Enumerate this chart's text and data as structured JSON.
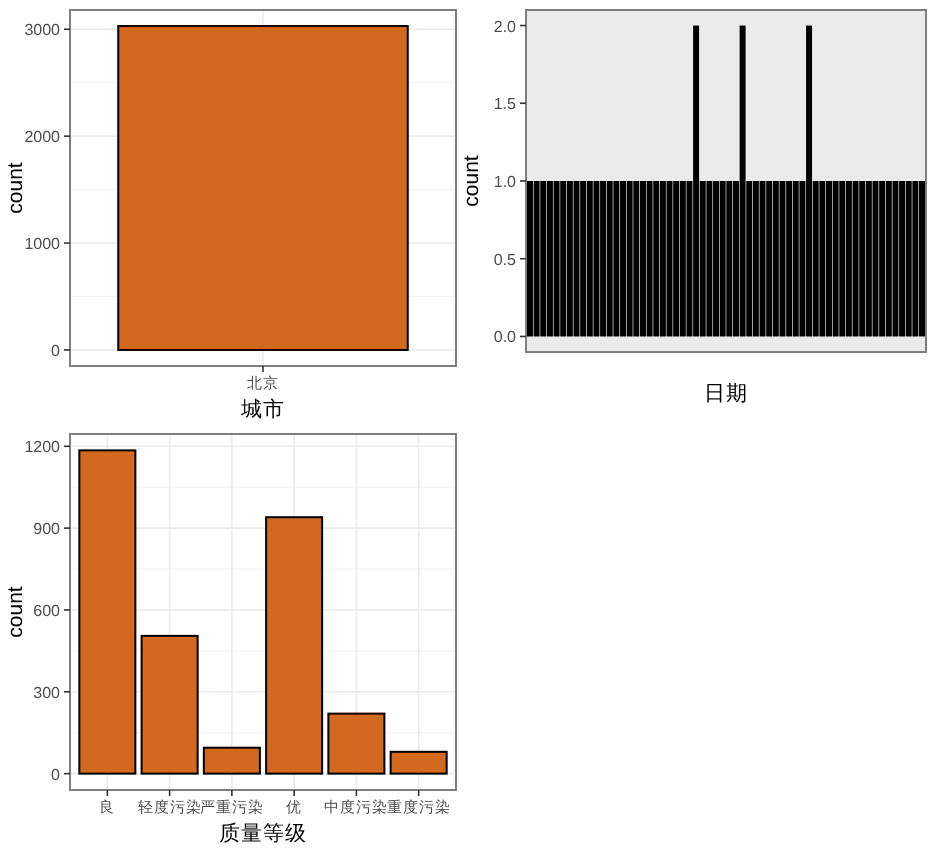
{
  "chart_data": [
    {
      "type": "bar",
      "xlabel": "城市",
      "ylabel": "count",
      "categories": [
        "北京"
      ],
      "values": [
        3030
      ],
      "color": "#d2691e",
      "ylim": [
        -150,
        3180
      ],
      "yticks": [
        0,
        1000,
        2000,
        3000
      ],
      "grid": true
    },
    {
      "type": "bar",
      "xlabel": "日期",
      "ylabel": "count",
      "categories": [
        null,
        null,
        null,
        null,
        null,
        null,
        null,
        null,
        null,
        null,
        null,
        null,
        null,
        null,
        null,
        null,
        null,
        null,
        null,
        null,
        null,
        null,
        null,
        null,
        null,
        null,
        null,
        null,
        null,
        null,
        null,
        null,
        null,
        null,
        null,
        null,
        null,
        null,
        null,
        null,
        null,
        null,
        null,
        null,
        null,
        null,
        null,
        null,
        null,
        null,
        null,
        null,
        null,
        null,
        null,
        null,
        null,
        null,
        null,
        null
      ],
      "values": [
        1,
        1,
        1,
        1,
        1,
        1,
        1,
        1,
        1,
        1,
        1,
        1,
        1,
        1,
        1,
        1,
        1,
        1,
        1,
        1,
        1,
        1,
        1,
        1,
        1,
        2,
        1,
        1,
        1,
        1,
        1,
        1,
        2,
        1,
        1,
        1,
        1,
        1,
        1,
        1,
        1,
        1,
        2,
        1,
        1,
        1,
        1,
        1,
        1,
        1,
        1,
        1,
        1,
        1,
        1,
        1,
        1,
        1,
        1,
        1
      ],
      "color": "#000000",
      "ylim": [
        -0.1,
        2.1
      ],
      "yticks": [
        {
          "value": 0,
          "label": "0.0"
        },
        {
          "value": 0.5,
          "label": "0.5"
        },
        {
          "value": 1,
          "label": "1.0"
        },
        {
          "value": 1.5,
          "label": "1.5"
        },
        {
          "value": 2,
          "label": "2.0"
        }
      ],
      "tick_labels": "y"
    },
    {
      "type": "bar",
      "xlabel": "质量等级",
      "ylabel": "count",
      "categories": [
        "良",
        "轻度污染",
        "严重污染",
        "优",
        "中度污染",
        "重度污染"
      ],
      "values": [
        1185,
        505,
        95,
        940,
        220,
        80
      ],
      "color": "#d2691e",
      "ylim": [
        -60,
        1245
      ],
      "yticks": [
        0,
        300,
        600,
        900,
        1200
      ],
      "grid": true
    }
  ]
}
